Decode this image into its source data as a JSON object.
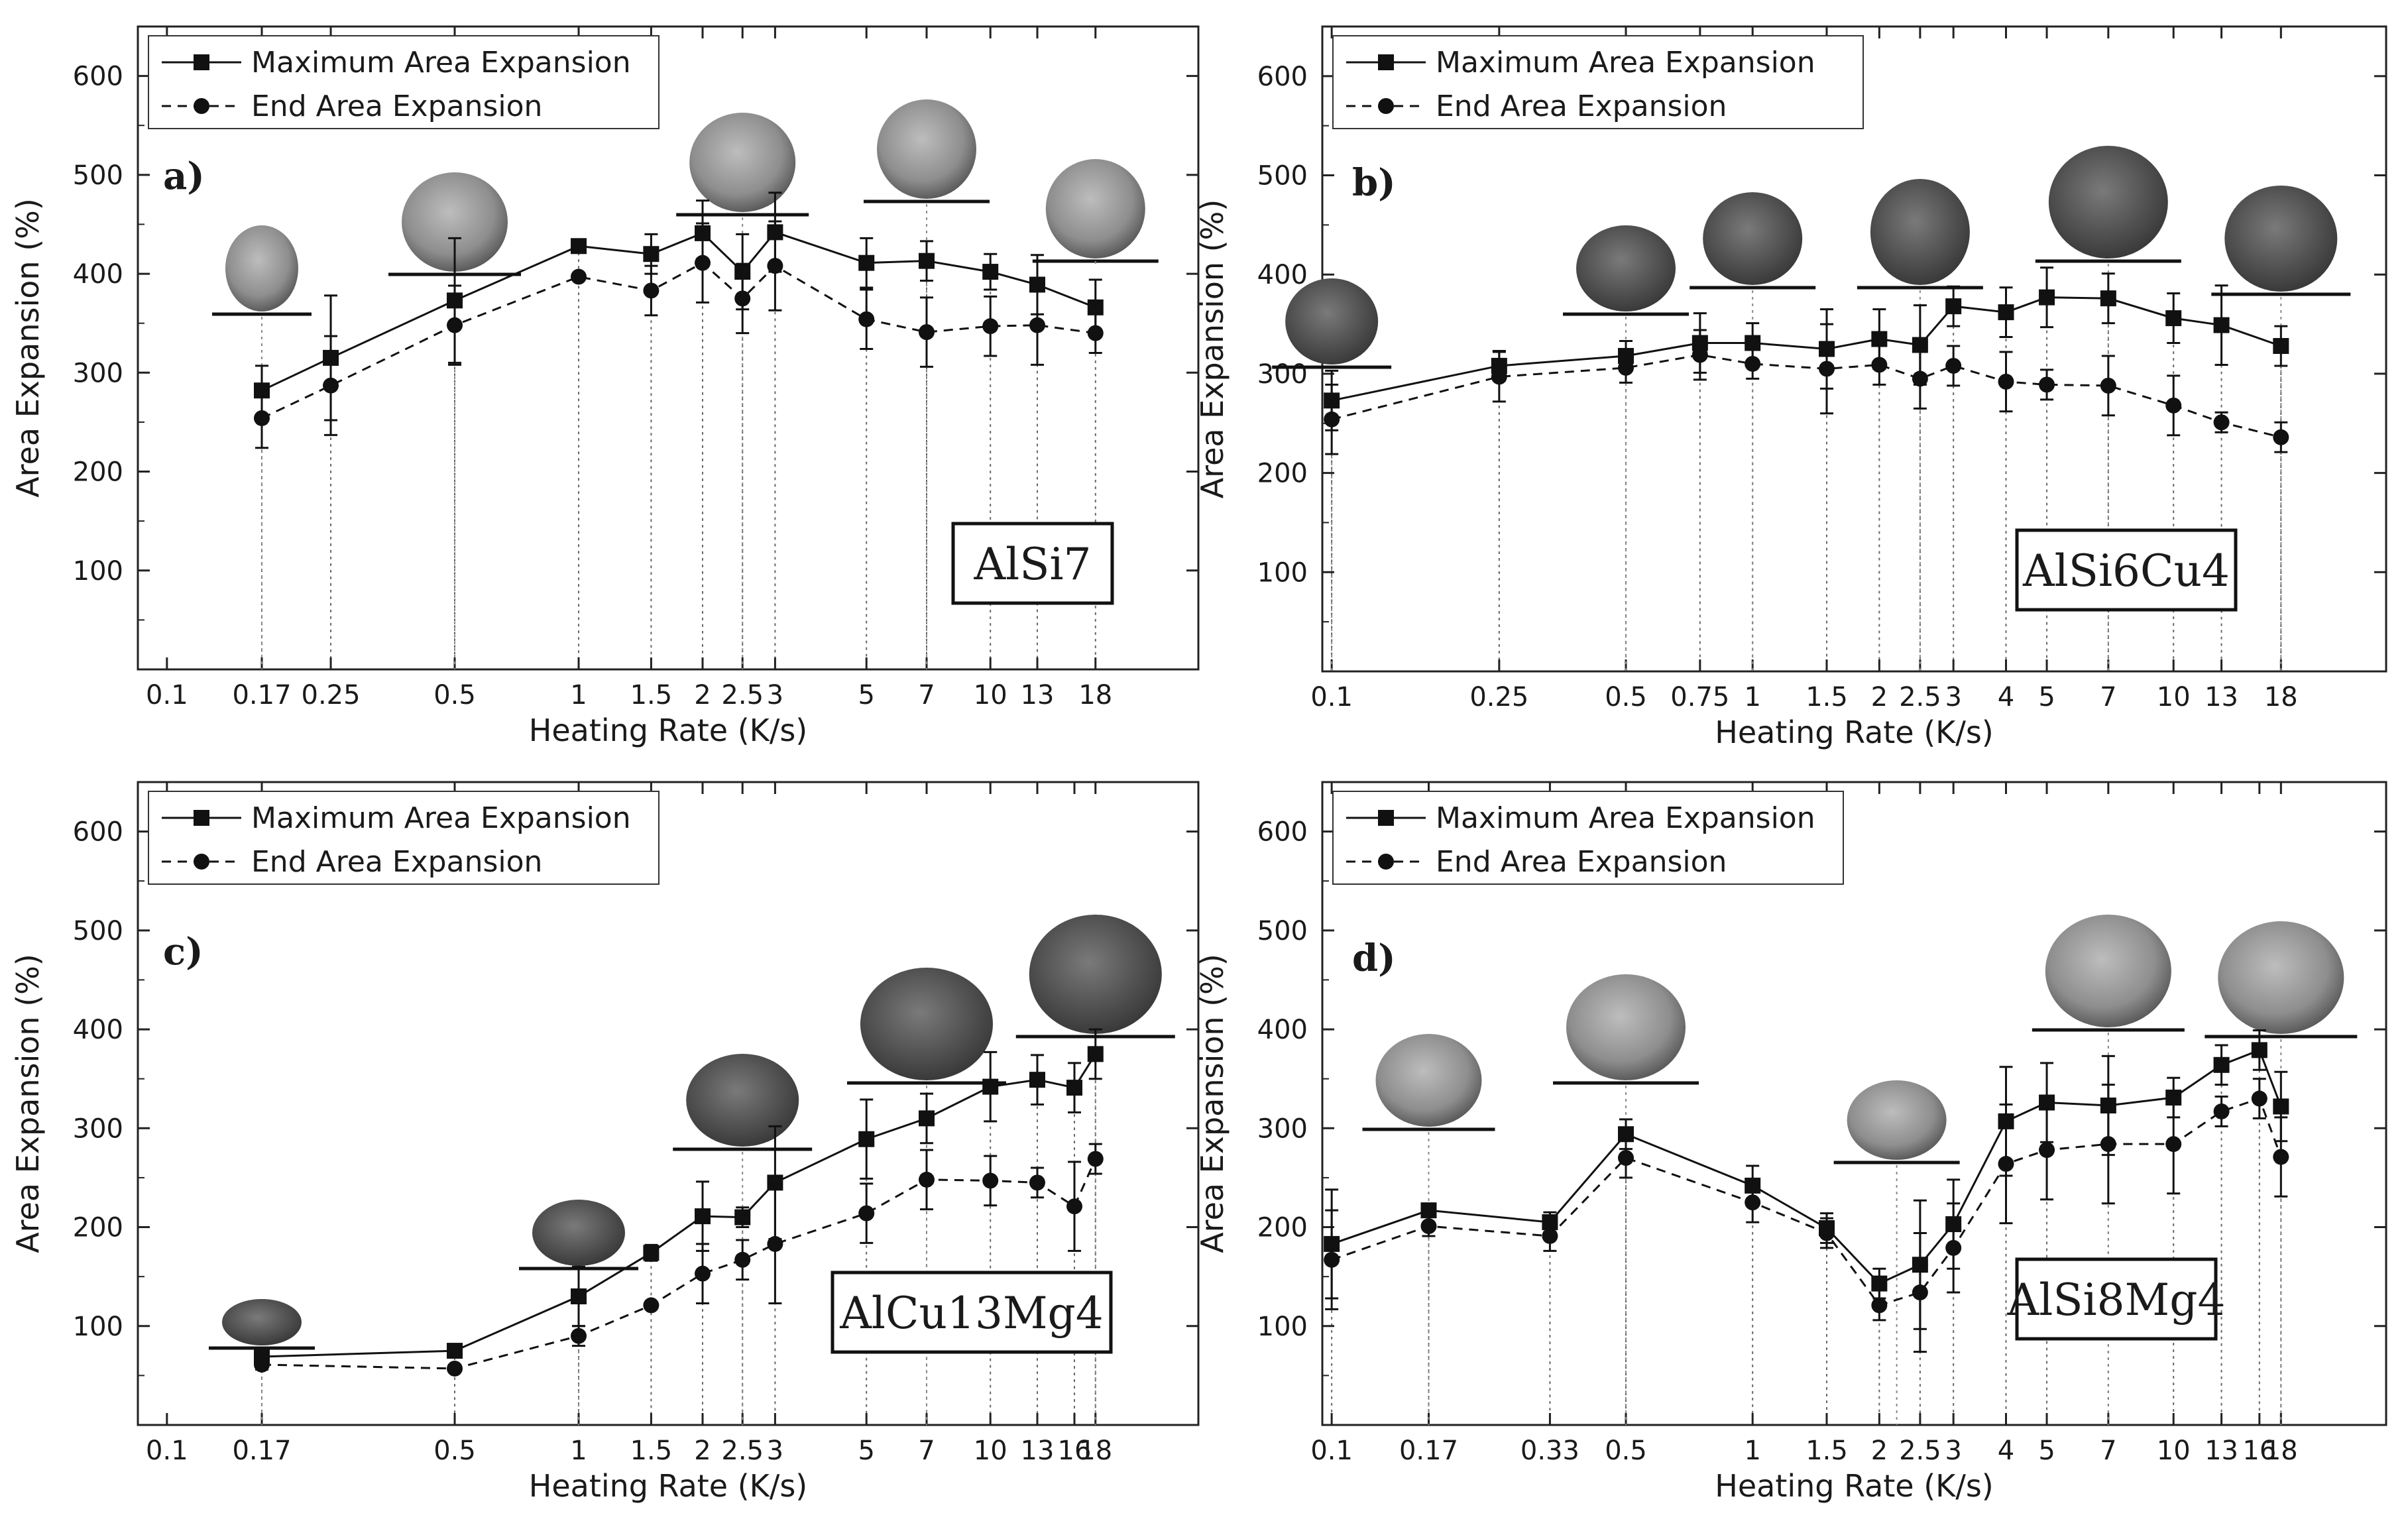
{
  "chart_data": [
    {
      "panel_label": "a)",
      "alloy": "AlSi7",
      "type": "line",
      "x_scale": "log",
      "xlim": [
        0.085,
        32
      ],
      "ylim": [
        0,
        650
      ],
      "xlabel": "Heating Rate (K/s)",
      "ylabel": "Area Expansion (%)",
      "x_tick_labels": [
        "0.1",
        "0.17",
        "0.25",
        "0.5",
        "1",
        "1.5",
        "2",
        "2.5",
        "3",
        "5",
        "7",
        "10",
        "13",
        "18"
      ],
      "x_tick_values": [
        0.1,
        0.17,
        0.25,
        0.5,
        1,
        1.5,
        2,
        2.5,
        3,
        5,
        7,
        10,
        13,
        18
      ],
      "y_ticks": [
        100,
        200,
        300,
        400,
        500,
        600
      ],
      "legend_position": "top-left",
      "series": [
        {
          "name": "Maximum Area Expansion",
          "marker": "square",
          "line": "solid",
          "x": [
            0.17,
            0.25,
            0.5,
            1,
            1.5,
            2,
            2.5,
            3,
            5,
            7,
            10,
            13,
            18
          ],
          "y": [
            282,
            315,
            373,
            428,
            420,
            441,
            402,
            442,
            411,
            413,
            402,
            389,
            366
          ],
          "err": [
            25,
            63,
            63,
            0,
            20,
            33,
            38,
            40,
            25,
            20,
            18,
            30,
            28
          ]
        },
        {
          "name": "End Area Expansion",
          "marker": "circle",
          "line": "dashed",
          "x": [
            0.17,
            0.25,
            0.5,
            1,
            1.5,
            2,
            2.5,
            3,
            5,
            7,
            10,
            13,
            18
          ],
          "y": [
            254,
            287,
            348,
            397,
            383,
            411,
            375,
            408,
            354,
            341,
            347,
            348,
            340
          ],
          "err": [
            30,
            50,
            40,
            0,
            25,
            40,
            35,
            45,
            30,
            35,
            30,
            40,
            20
          ]
        }
      ]
    },
    {
      "panel_label": "b)",
      "alloy": "AlSi6Cu4",
      "type": "line",
      "x_scale": "log",
      "xlim": [
        0.095,
        32
      ],
      "ylim": [
        0,
        650
      ],
      "xlabel": "Heating Rate (K/s)",
      "ylabel": "Area Expansion (%)",
      "x_tick_labels": [
        "0.1",
        "0.25",
        "0.5",
        "0.75",
        "1",
        "1.5",
        "2",
        "2.5",
        "3",
        "4",
        "5",
        "7",
        "10",
        "13",
        "18"
      ],
      "x_tick_values": [
        0.1,
        0.25,
        0.5,
        0.75,
        1,
        1.5,
        2,
        2.5,
        3,
        4,
        5,
        7,
        10,
        13,
        18
      ],
      "y_ticks": [
        100,
        200,
        300,
        400,
        500,
        600
      ],
      "legend_position": "top-left",
      "series": [
        {
          "name": "Maximum Area Expansion",
          "marker": "square",
          "line": "solid",
          "x": [
            0.1,
            0.25,
            0.5,
            0.75,
            1,
            1.5,
            2,
            2.5,
            3,
            4,
            5,
            7,
            10,
            13,
            18
          ],
          "y": [
            273,
            308,
            318,
            331,
            331,
            325,
            335,
            329,
            368,
            362,
            377,
            376,
            356,
            349,
            328
          ],
          "err": [
            30,
            15,
            15,
            30,
            20,
            40,
            30,
            40,
            20,
            25,
            30,
            25,
            25,
            40,
            20
          ]
        },
        {
          "name": "End Area Expansion",
          "marker": "circle",
          "line": "dashed",
          "x": [
            0.1,
            0.25,
            0.5,
            0.75,
            1,
            1.5,
            2,
            2.5,
            3,
            4,
            5,
            7,
            10,
            13,
            18
          ],
          "y": [
            254,
            297,
            306,
            319,
            310,
            305,
            309,
            295,
            308,
            292,
            289,
            288,
            268,
            251,
            236
          ],
          "err": [
            35,
            25,
            15,
            25,
            15,
            45,
            20,
            30,
            20,
            30,
            15,
            30,
            30,
            10,
            15
          ]
        }
      ]
    },
    {
      "panel_label": "c)",
      "alloy": "AlCu13Mg4",
      "type": "line",
      "x_scale": "log",
      "xlim": [
        0.085,
        32
      ],
      "ylim": [
        0,
        650
      ],
      "xlabel": "Heating Rate (K/s)",
      "ylabel": "Area Expansion (%)",
      "x_tick_labels": [
        "0.1",
        "0.17",
        "0.5",
        "1",
        "1.5",
        "2",
        "2.5",
        "3",
        "5",
        "7",
        "10",
        "13",
        "16",
        "18"
      ],
      "x_tick_values": [
        0.1,
        0.17,
        0.5,
        1,
        1.5,
        2,
        2.5,
        3,
        5,
        7,
        10,
        13,
        16,
        18
      ],
      "y_ticks": [
        100,
        200,
        300,
        400,
        500,
        600
      ],
      "legend_position": "top-left",
      "series": [
        {
          "name": "Maximum Area Expansion",
          "marker": "square",
          "line": "solid",
          "x": [
            0.17,
            0.5,
            1,
            1.5,
            2,
            2.5,
            3,
            5,
            7,
            10,
            13,
            16,
            18
          ],
          "y": [
            69,
            75,
            130,
            174,
            211,
            210,
            245,
            289,
            310,
            342,
            349,
            341,
            375
          ],
          "err": [
            5,
            0,
            30,
            8,
            35,
            10,
            57,
            40,
            25,
            35,
            25,
            25,
            25
          ]
        },
        {
          "name": "End Area Expansion",
          "marker": "circle",
          "line": "dashed",
          "x": [
            0.17,
            0.5,
            1,
            1.5,
            2,
            2.5,
            3,
            5,
            7,
            10,
            13,
            16,
            18
          ],
          "y": [
            61,
            57,
            90,
            121,
            153,
            167,
            183,
            214,
            248,
            247,
            245,
            221,
            269
          ],
          "err": [
            5,
            0,
            10,
            0,
            30,
            20,
            60,
            30,
            30,
            25,
            15,
            45,
            15
          ]
        }
      ]
    },
    {
      "panel_label": "d)",
      "alloy": "AlSi8Mg4",
      "type": "line",
      "x_scale": "log",
      "xlim": [
        0.095,
        32
      ],
      "ylim": [
        0,
        650
      ],
      "xlabel": "Heating Rate (K/s)",
      "ylabel": "Area Expansion (%)",
      "x_tick_labels": [
        "0.1",
        "0.17",
        "0.33",
        "0.5",
        "1",
        "1.5",
        "2",
        "2.5",
        "3",
        "4",
        "5",
        "7",
        "10",
        "13",
        "16",
        "18"
      ],
      "x_tick_values": [
        0.1,
        0.17,
        0.33,
        0.5,
        1,
        1.5,
        2,
        2.5,
        3,
        4,
        5,
        7,
        10,
        13,
        16,
        18
      ],
      "y_ticks": [
        100,
        200,
        300,
        400,
        500,
        600
      ],
      "legend_position": "top-left",
      "series": [
        {
          "name": "Maximum Area Expansion",
          "marker": "square",
          "line": "solid",
          "x": [
            0.1,
            0.17,
            0.33,
            0.5,
            1,
            1.5,
            2,
            2.5,
            3,
            4,
            5,
            7,
            10,
            13,
            16,
            18
          ],
          "y": [
            183,
            217,
            205,
            294,
            242,
            199,
            143,
            162,
            203,
            307,
            326,
            323,
            331,
            364,
            379,
            322
          ],
          "err": [
            55,
            5,
            10,
            15,
            20,
            15,
            15,
            65,
            45,
            55,
            40,
            50,
            20,
            20,
            20,
            35
          ]
        },
        {
          "name": "End Area Expansion",
          "marker": "circle",
          "line": "dashed",
          "x": [
            0.1,
            0.17,
            0.33,
            0.5,
            1,
            1.5,
            2,
            2.5,
            3,
            4,
            5,
            7,
            10,
            13,
            16,
            18
          ],
          "y": [
            167,
            201,
            191,
            270,
            225,
            194,
            121,
            134,
            179,
            264,
            278,
            284,
            284,
            317,
            330,
            271
          ],
          "err": [
            50,
            10,
            15,
            20,
            20,
            15,
            15,
            60,
            45,
            60,
            50,
            60,
            50,
            15,
            20,
            40
          ]
        }
      ]
    }
  ]
}
